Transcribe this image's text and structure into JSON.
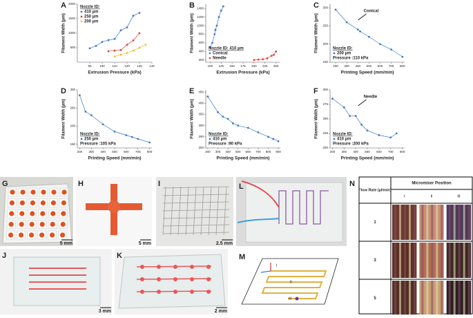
{
  "chart_data": [
    {
      "type": "scatter",
      "label": "A",
      "xlabel": "Extrusion Pressure (kPa)",
      "ylabel": "Filament Width (µm)",
      "xlim": [
        80,
        140
      ],
      "xticks": [
        90,
        100,
        110,
        120,
        130,
        140
      ],
      "ylim": [
        0,
        2000
      ],
      "yticks": [
        500,
        1000,
        1500,
        2000
      ],
      "legend": "upper left",
      "legend_title": "Nozzle ID:",
      "series": [
        {
          "name": "410 µm",
          "color": "#3b78c8",
          "x": [
            90,
            95,
            100,
            105,
            110,
            115,
            120,
            125,
            130
          ],
          "values": [
            480,
            560,
            700,
            760,
            800,
            1100,
            1200,
            1600,
            1700
          ]
        },
        {
          "name": "250 µm",
          "color": "#e0403a",
          "x": [
            105,
            110,
            115,
            120,
            125,
            130
          ],
          "values": [
            380,
            400,
            420,
            600,
            750,
            1000
          ]
        },
        {
          "name": "200 µm",
          "color": "#f0c020",
          "x": [
            110,
            115,
            120,
            125,
            130,
            135
          ],
          "values": [
            200,
            260,
            320,
            400,
            500,
            600
          ]
        }
      ]
    },
    {
      "type": "scatter",
      "label": "B",
      "xlabel": "Extrusion Pressure (kPa)",
      "ylabel": "Filament Width (µm)",
      "xlim": [
        90,
        260
      ],
      "xticks": [
        100,
        125,
        150,
        175,
        200,
        225,
        250
      ],
      "ylim": [
        150,
        1500
      ],
      "yticks": [
        200,
        400,
        600,
        800,
        1000,
        1200,
        1400
      ],
      "legend": "lower left",
      "legend_title": "Nozzle ID: 410 µm",
      "series": [
        {
          "name": "Conical",
          "color": "#3b78c8",
          "x": [
            100,
            105,
            110,
            112,
            115,
            120,
            125,
            130
          ],
          "values": [
            500,
            600,
            800,
            900,
            1000,
            1200,
            1350,
            1450
          ]
        },
        {
          "name": "Needle",
          "color": "#e0403a",
          "x": [
            200,
            210,
            220,
            230,
            240,
            245,
            250
          ],
          "values": [
            200,
            210,
            220,
            240,
            300,
            320,
            400
          ]
        }
      ]
    },
    {
      "type": "scatter",
      "label": "C",
      "xlabel": "Printing Speed (mm/min)",
      "ylabel": "Filament Width (µm)",
      "xlim": [
        150,
        820
      ],
      "xticks": [
        200,
        300,
        400,
        500,
        600,
        700,
        800
      ],
      "ylim": [
        150,
        310
      ],
      "yticks": [
        150,
        200,
        250,
        300
      ],
      "legend": "lower left",
      "legend_title": "Nozzle ID:",
      "legend_note": "Pressure :110 kPa",
      "annotation": "Conical",
      "series": [
        {
          "name": "200 µm",
          "color": "#3b78c8",
          "x": [
            200,
            300,
            400,
            420,
            500,
            600,
            700,
            800
          ],
          "values": [
            295,
            260,
            240,
            235,
            220,
            200,
            185,
            165
          ]
        }
      ]
    },
    {
      "type": "scatter",
      "label": "D",
      "xlabel": "Printing Speed (mm/min)",
      "ylabel": "Filament Width (µm)",
      "xlim": [
        180,
        820
      ],
      "xticks": [
        200,
        300,
        400,
        500,
        600,
        700,
        800
      ],
      "ylim": [
        140,
        300
      ],
      "yticks": [
        150,
        200,
        250,
        300
      ],
      "legend": "lower left",
      "legend_title": "Nozzle ID:",
      "legend_note": "Pressure :105 kPa",
      "series": [
        {
          "name": "250 µm",
          "color": "#3b78c8",
          "x": [
            200,
            250,
            300,
            400,
            500,
            600,
            650,
            700,
            800
          ],
          "values": [
            285,
            240,
            230,
            205,
            185,
            175,
            170,
            165,
            155
          ]
        }
      ]
    },
    {
      "type": "scatter",
      "label": "E",
      "xlabel": "Printing Speed (mm/min)",
      "ylabel": "Filament Width (µm)",
      "xlim": [
        180,
        920
      ],
      "xticks": [
        200,
        300,
        400,
        500,
        600,
        700,
        800,
        900
      ],
      "ylim": [
        200,
        460
      ],
      "yticks": [
        200,
        250,
        300,
        350,
        400,
        450
      ],
      "legend": "lower left",
      "legend_title": "Nozzle ID:",
      "legend_note": "Pressure :90 kPa",
      "series": [
        {
          "name": "410 µm",
          "color": "#3b78c8",
          "x": [
            200,
            300,
            350,
            400,
            450,
            500,
            600,
            700,
            800,
            850,
            900
          ],
          "values": [
            430,
            360,
            340,
            330,
            310,
            300,
            290,
            270,
            250,
            240,
            230
          ]
        }
      ]
    },
    {
      "type": "scatter",
      "label": "F",
      "xlabel": "Printing Speed (mm/min)",
      "ylabel": "Filament Width (µm)",
      "xlim": [
        180,
        820
      ],
      "xticks": [
        200,
        300,
        400,
        500,
        600,
        700,
        800
      ],
      "ylim": [
        200,
        300
      ],
      "yticks": [
        200,
        225,
        250,
        275,
        300
      ],
      "legend": "lower left",
      "legend_title": "Nozzle ID:",
      "legend_note": "Pressure :200 kPa",
      "annotation": "Needle",
      "series": [
        {
          "name": "410 µm",
          "color": "#3b78c8",
          "x": [
            200,
            300,
            350,
            400,
            450,
            500,
            600,
            700,
            750
          ],
          "values": [
            285,
            270,
            255,
            255,
            240,
            230,
            222,
            218,
            225
          ]
        }
      ]
    }
  ],
  "photos": [
    {
      "label": "G",
      "scale": "5 mm"
    },
    {
      "label": "H",
      "scale": "5 mm"
    },
    {
      "label": "I",
      "scale": "2.5 mm"
    },
    {
      "label": "J",
      "scale": "3 mm"
    },
    {
      "label": "K",
      "scale": "2 mm"
    },
    {
      "label": "L"
    }
  ],
  "diagram": {
    "label": "M",
    "stages": [
      "i",
      "ii",
      "iii"
    ]
  },
  "table": {
    "label": "N",
    "row_header": "Flow Rate (µl/min)",
    "column_header": "Micromixer Position",
    "columns": [
      "i",
      "ii",
      "iii"
    ],
    "rows": [
      "1",
      "3",
      "5"
    ]
  }
}
